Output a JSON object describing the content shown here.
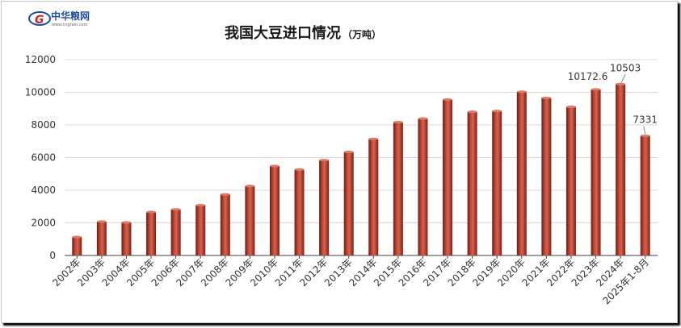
{
  "logo": {
    "name": "中华粮网",
    "url": "www.cngrain.com",
    "mark": "G"
  },
  "colors": {
    "bar": "#b13a2b",
    "bar_dark": "#6e1c12",
    "bar_light": "#d9624d",
    "grid": "#d9d9d9",
    "axis": "#404040",
    "logo_red": "#d51f26",
    "logo_blue": "#1f4e9c"
  },
  "chart_data": {
    "type": "bar",
    "title": "我国大豆进口情况",
    "title_unit": "（万吨）",
    "categories": [
      "2002年",
      "2003年",
      "2004年",
      "2005年",
      "2006年",
      "2007年",
      "2008年",
      "2009年",
      "2010年",
      "2011年",
      "2012年",
      "2013年",
      "2014年",
      "2015年",
      "2016年",
      "2017年",
      "2018年",
      "2019年",
      "2020年",
      "2021年",
      "2022年",
      "2023年",
      "2024年",
      "2025年1-8月"
    ],
    "values": [
      1130,
      2074,
      2023,
      2659,
      2827,
      3082,
      3744,
      4255,
      5480,
      5264,
      5838,
      6338,
      7140,
      8169,
      8391,
      9553,
      8803,
      8851,
      10033,
      9652,
      9108,
      10172.6,
      10503,
      7331
    ],
    "data_labels": {
      "21": "10172.6",
      "22": "10503",
      "23": "7331"
    },
    "ylim": [
      0,
      12000
    ],
    "yticks": [
      0,
      2000,
      4000,
      6000,
      8000,
      10000,
      12000
    ],
    "grid": true,
    "legend": "none"
  }
}
